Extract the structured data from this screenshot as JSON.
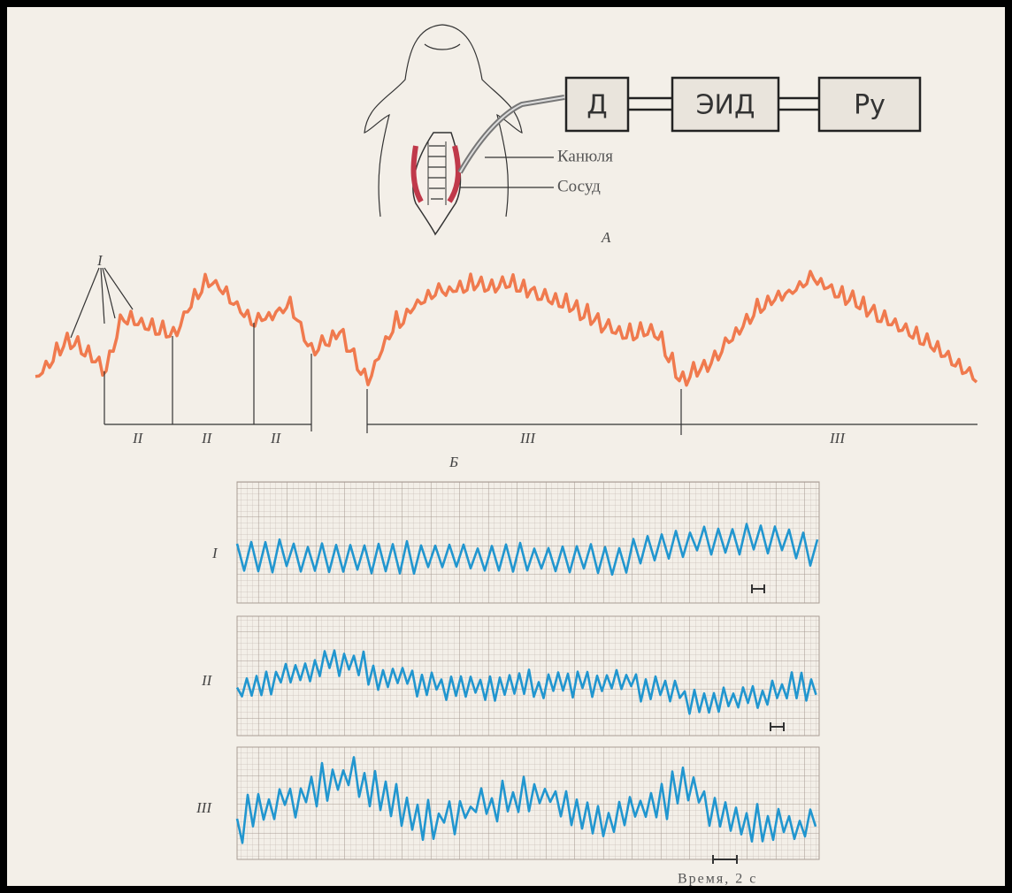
{
  "panel_a": {
    "boxes": [
      "Д",
      "ЭИД",
      "Ру"
    ],
    "cannula": "Канюля",
    "vessel": "Сосуд",
    "caption": "А"
  },
  "panel_b": {
    "wave_label": "I",
    "segments": [
      "II",
      "II",
      "II",
      "III",
      "III"
    ],
    "caption": "Б"
  },
  "panel_c": {
    "traces": [
      "I",
      "II",
      "III"
    ],
    "time_label": "Время, 2 с"
  }
}
